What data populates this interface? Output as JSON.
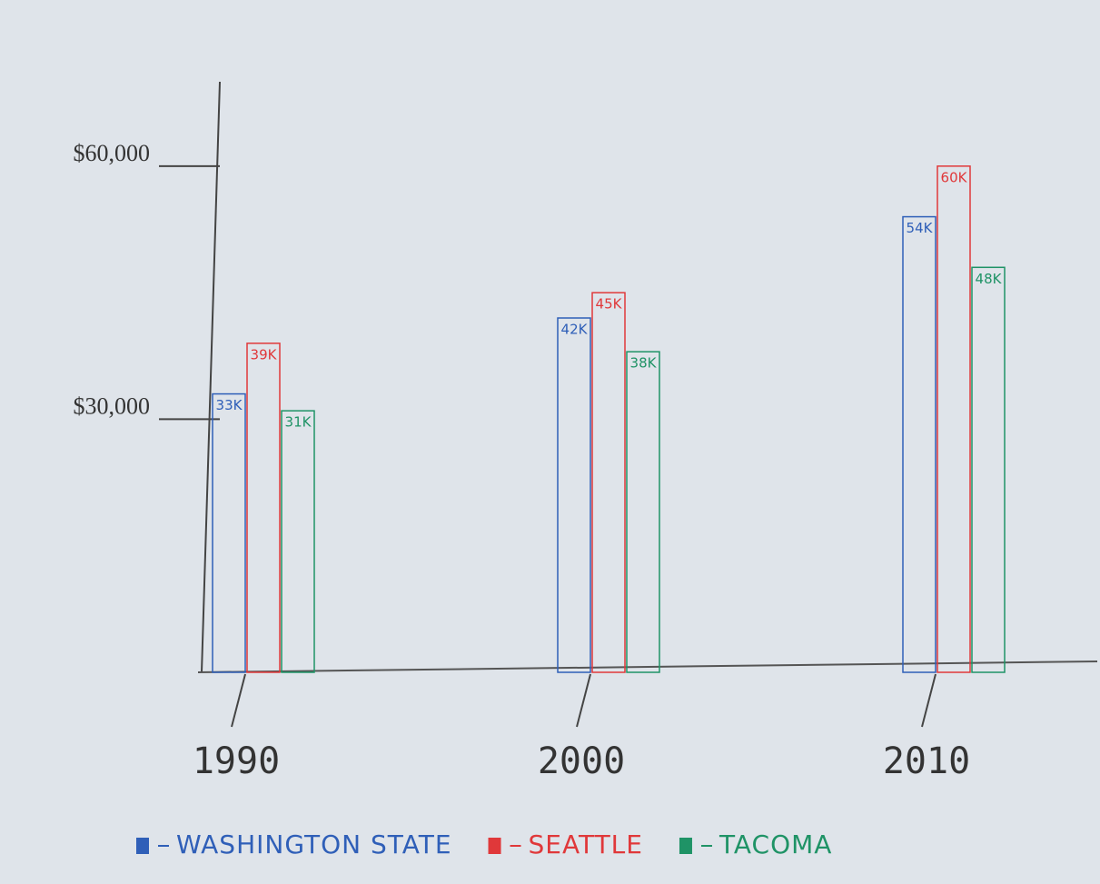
{
  "chart_data": {
    "type": "bar",
    "categories": [
      "1990",
      "2000",
      "2010"
    ],
    "series": [
      {
        "name": "WASHINGTON STATE",
        "color": "#2f5fb8",
        "values": [
          33000,
          42000,
          54000
        ],
        "value_labels": [
          "33K",
          "42K",
          "54K"
        ]
      },
      {
        "name": "SEATTLE",
        "color": "#e0383a",
        "values": [
          39000,
          45000,
          60000
        ],
        "value_labels": [
          "39K",
          "45K",
          "60K"
        ]
      },
      {
        "name": "TACOMA",
        "color": "#1f9366",
        "values": [
          31000,
          38000,
          48000
        ],
        "value_labels": [
          "31K",
          "38K",
          "48K"
        ]
      }
    ],
    "ylim": [
      0,
      70000
    ],
    "yticks": [
      {
        "value": 30000,
        "label": "$30,000"
      },
      {
        "value": 60000,
        "label": "$60,000"
      }
    ],
    "legend": "bottom"
  }
}
